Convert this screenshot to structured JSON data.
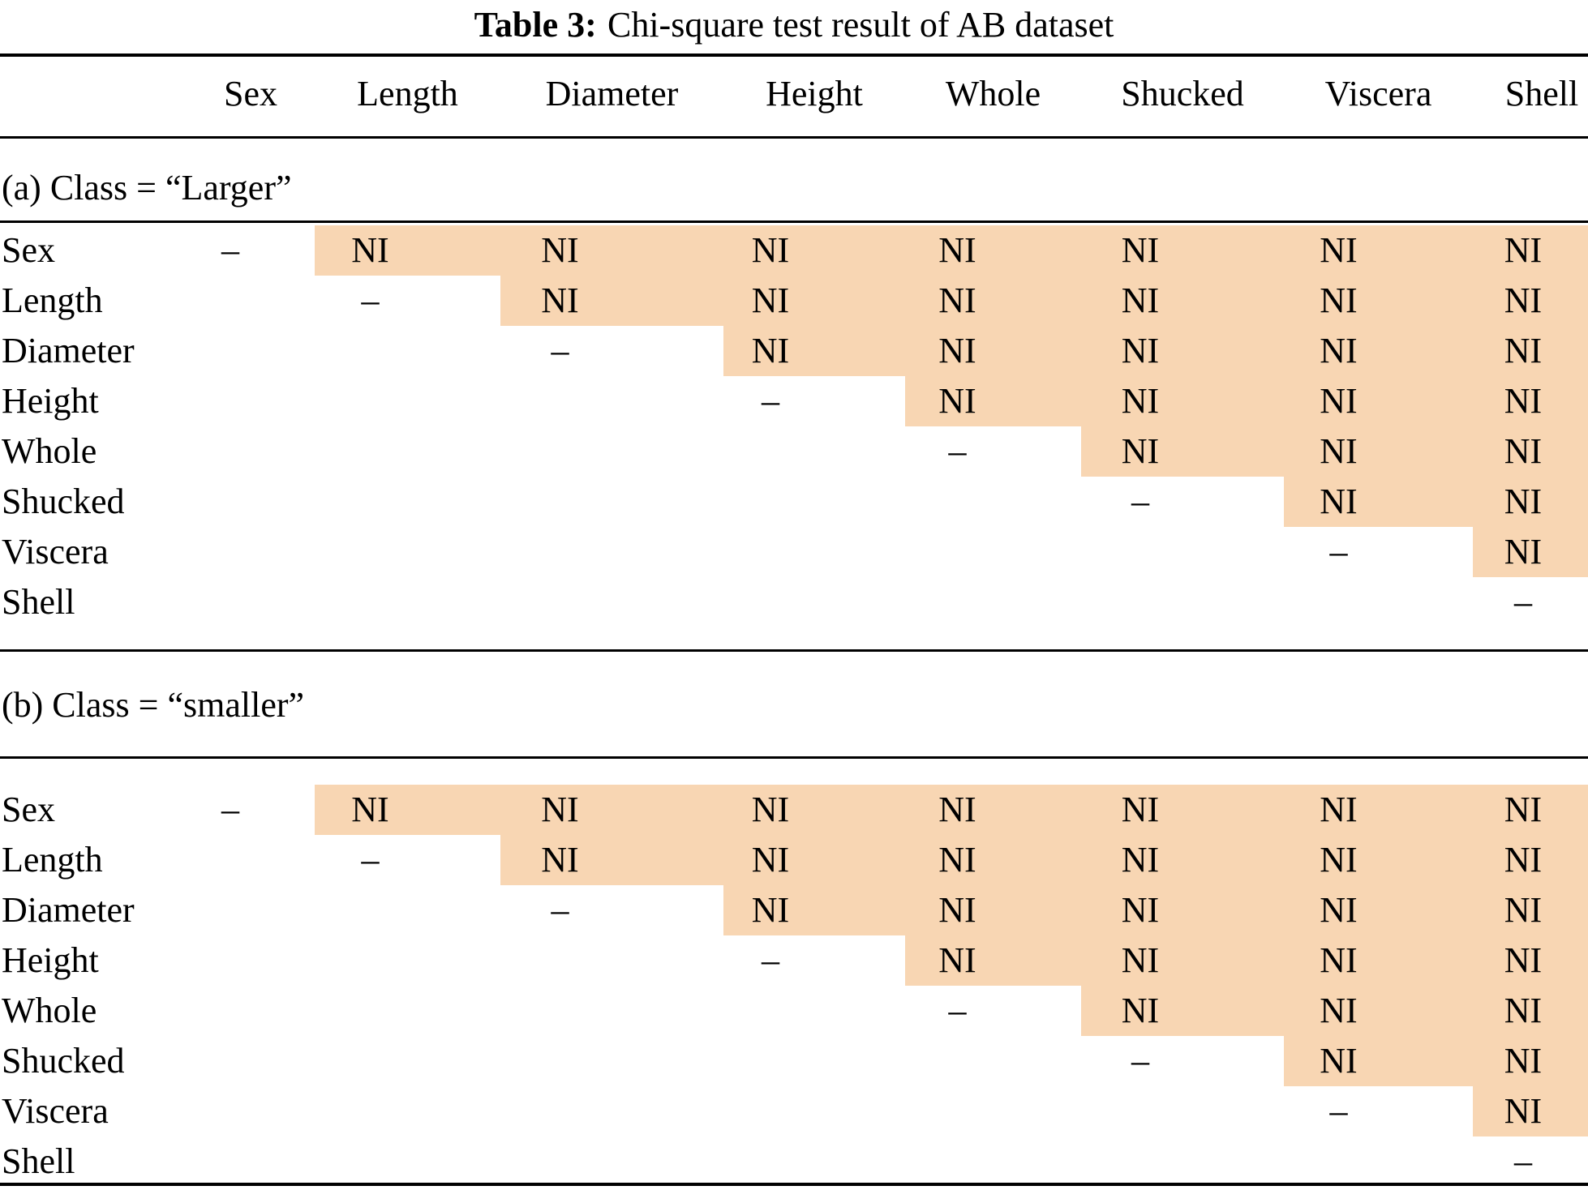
{
  "title": {
    "label": "Table 3:",
    "text": "Chi-square test result of AB dataset"
  },
  "columns": [
    "Sex",
    "Length",
    "Diameter",
    "Height",
    "Whole",
    "Shucked",
    "Viscera",
    "Shell"
  ],
  "colors": {
    "highlight": "#f8d6b3",
    "rule": "#000000",
    "text": "#000000"
  },
  "cell_symbols": {
    "not_independent": "NI",
    "diagonal": "–"
  },
  "sections": [
    {
      "id": "a",
      "label": "(a) Class = “Larger”",
      "rows": [
        {
          "label": "Sex",
          "cells": [
            "–",
            "NI",
            "NI",
            "NI",
            "NI",
            "NI",
            "NI",
            "NI"
          ]
        },
        {
          "label": "Length",
          "cells": [
            "",
            "–",
            "NI",
            "NI",
            "NI",
            "NI",
            "NI",
            "NI"
          ]
        },
        {
          "label": "Diameter",
          "cells": [
            "",
            "",
            "–",
            "NI",
            "NI",
            "NI",
            "NI",
            "NI"
          ]
        },
        {
          "label": "Height",
          "cells": [
            "",
            "",
            "",
            "–",
            "NI",
            "NI",
            "NI",
            "NI"
          ]
        },
        {
          "label": "Whole",
          "cells": [
            "",
            "",
            "",
            "",
            "–",
            "NI",
            "NI",
            "NI"
          ]
        },
        {
          "label": "Shucked",
          "cells": [
            "",
            "",
            "",
            "",
            "",
            "–",
            "NI",
            "NI"
          ]
        },
        {
          "label": "Viscera",
          "cells": [
            "",
            "",
            "",
            "",
            "",
            "",
            "–",
            "NI"
          ]
        },
        {
          "label": "Shell",
          "cells": [
            "",
            "",
            "",
            "",
            "",
            "",
            "",
            "–"
          ]
        }
      ]
    },
    {
      "id": "b",
      "label": "(b) Class = “smaller”",
      "rows": [
        {
          "label": "Sex",
          "cells": [
            "–",
            "NI",
            "NI",
            "NI",
            "NI",
            "NI",
            "NI",
            "NI"
          ]
        },
        {
          "label": "Length",
          "cells": [
            "",
            "–",
            "NI",
            "NI",
            "NI",
            "NI",
            "NI",
            "NI"
          ]
        },
        {
          "label": "Diameter",
          "cells": [
            "",
            "",
            "–",
            "NI",
            "NI",
            "NI",
            "NI",
            "NI"
          ]
        },
        {
          "label": "Height",
          "cells": [
            "",
            "",
            "",
            "–",
            "NI",
            "NI",
            "NI",
            "NI"
          ]
        },
        {
          "label": "Whole",
          "cells": [
            "",
            "",
            "",
            "",
            "–",
            "NI",
            "NI",
            "NI"
          ]
        },
        {
          "label": "Shucked",
          "cells": [
            "",
            "",
            "",
            "",
            "",
            "–",
            "NI",
            "NI"
          ]
        },
        {
          "label": "Viscera",
          "cells": [
            "",
            "",
            "",
            "",
            "",
            "",
            "–",
            "NI"
          ]
        },
        {
          "label": "Shell",
          "cells": [
            "",
            "",
            "",
            "",
            "",
            "",
            "",
            "–"
          ]
        }
      ]
    }
  ]
}
